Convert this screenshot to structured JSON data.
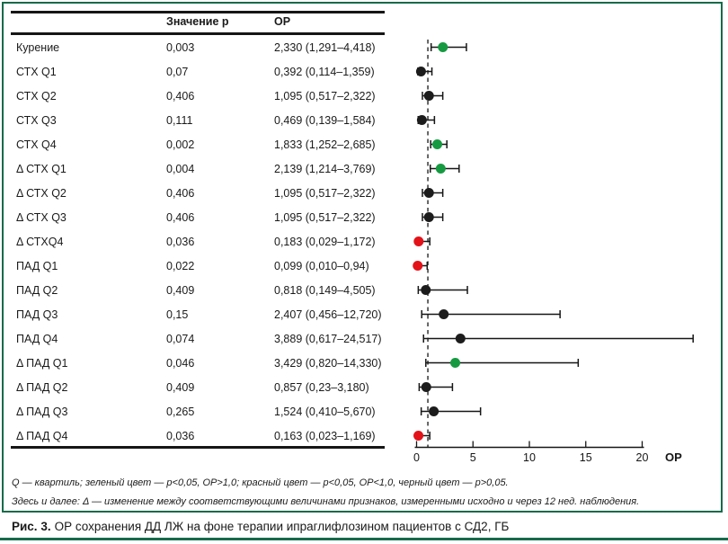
{
  "colors": {
    "frame": "#166b4b",
    "green": "#169a41",
    "red": "#e31219",
    "black": "#1c1c1c"
  },
  "table": {
    "headers": {
      "p": "Значение р",
      "or": "ОР"
    },
    "rows": [
      {
        "label": "Курение",
        "p": "0,003",
        "ci": "2,330 (1,291–4,418)"
      },
      {
        "label": "СТХ Q1",
        "p": "0,07",
        "ci": "0,392 (0,114–1,359)"
      },
      {
        "label": "СТХ Q2",
        "p": "0,406",
        "ci": "1,095 (0,517–2,322)"
      },
      {
        "label": "СТХ Q3",
        "p": "0,111",
        "ci": "0,469 (0,139–1,584)"
      },
      {
        "label": "СТХ Q4",
        "p": "0,002",
        "ci": "1,833 (1,252–2,685)"
      },
      {
        "label": "Δ СТХ Q1",
        "p": "0,004",
        "ci": "2,139 (1,214–3,769)"
      },
      {
        "label": "Δ СТХ Q2",
        "p": "0,406",
        "ci": "1,095 (0,517–2,322)"
      },
      {
        "label": "Δ СТХ Q3",
        "p": "0,406",
        "ci": "1,095 (0,517–2,322)"
      },
      {
        "label": "Δ СТХQ4",
        "p": "0,036",
        "ci": "0,183 (0,029–1,172)"
      },
      {
        "label": "ПАД Q1",
        "p": "0,022",
        "ci": "0,099 (0,010–0,94)"
      },
      {
        "label": "ПАД Q2",
        "p": "0,409",
        "ci": "0,818 (0,149–4,505)"
      },
      {
        "label": "ПАД Q3",
        "p": "0,15",
        "ci": "2,407 (0,456–12,720)"
      },
      {
        "label": "ПАД Q4",
        "p": "0,074",
        "ci": "3,889 (0,617–24,517)"
      },
      {
        "label": "Δ ПАД Q1",
        "p": "0,046",
        "ci": "3,429 (0,820–14,330)"
      },
      {
        "label": "Δ ПАД Q2",
        "p": "0,409",
        "ci": "0,857 (0,23–3,180)"
      },
      {
        "label": "Δ ПАД Q3",
        "p": "0,265",
        "ci": "1,524 (0,410–5,670)"
      },
      {
        "label": "Δ ПАД Q4",
        "p": "0,036",
        "ci": "0,163 (0,023–1,169)"
      }
    ]
  },
  "chart_data": {
    "type": "scatter",
    "subtype": "forest-plot",
    "title": "",
    "categories": [
      "Курение",
      "СТХ Q1",
      "СТХ Q2",
      "СТХ Q3",
      "СТХ Q4",
      "Δ СТХ Q1",
      "Δ СТХ Q2",
      "Δ СТХ Q3",
      "Δ СТХQ4",
      "ПАД Q1",
      "ПАД Q2",
      "ПАД Q3",
      "ПАД Q4",
      "Δ ПАД Q1",
      "Δ ПАД Q2",
      "Δ ПАД Q3",
      "Δ ПАД Q4"
    ],
    "series": [
      {
        "name": "ОР",
        "values": [
          2.33,
          0.392,
          1.095,
          0.469,
          1.833,
          2.139,
          1.095,
          1.095,
          0.183,
          0.099,
          0.818,
          2.407,
          3.889,
          3.429,
          0.857,
          1.524,
          0.163
        ]
      },
      {
        "name": "ДИ нижняя",
        "values": [
          1.291,
          0.114,
          0.517,
          0.139,
          1.252,
          1.214,
          0.517,
          0.517,
          0.029,
          0.01,
          0.149,
          0.456,
          0.617,
          0.82,
          0.23,
          0.41,
          0.023
        ]
      },
      {
        "name": "ДИ верхняя",
        "values": [
          4.418,
          1.359,
          2.322,
          1.584,
          2.685,
          3.769,
          2.322,
          2.322,
          1.172,
          0.94,
          4.505,
          12.72,
          24.517,
          14.33,
          3.18,
          5.67,
          1.169
        ]
      }
    ],
    "point_colors": [
      "green",
      "black",
      "black",
      "black",
      "green",
      "green",
      "black",
      "black",
      "red",
      "red",
      "black",
      "black",
      "black",
      "green",
      "black",
      "black",
      "red"
    ],
    "xlabel": "ОР",
    "xlim": [
      0,
      20
    ],
    "xticks": [
      0,
      5,
      10,
      15,
      20
    ],
    "reference_line_x": 1.0,
    "grid": false,
    "legend_position": "none",
    "color_meaning": {
      "green": "p<0,05, ОР>1,0",
      "red": "p<0,05, ОР<1,0",
      "black": "p>0,05"
    }
  },
  "footnotes": [
    "Q — квартиль; зеленый цвет — p<0,05, ОР>1,0; красный цвет — p<0,05, ОР<1,0, черный цвет — p>0,05.",
    "Здесь и далее: Δ — изменение между соответствующими величинами признаков, измеренными исходно и через 12 нед. наблюдения."
  ],
  "caption": {
    "label": "Рис. 3.",
    "text": "ОР сохранения ДД ЛЖ на фоне терапии ипраглифлозином пациентов с СД2, ГБ"
  }
}
